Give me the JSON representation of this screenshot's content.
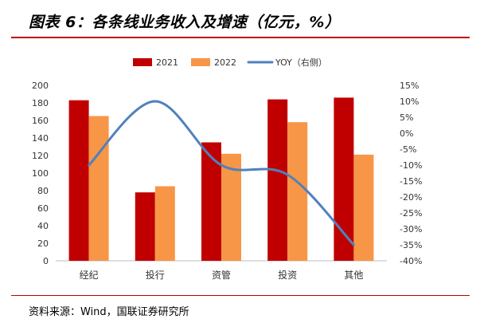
{
  "title": "图表 6：各条线业务收入及增速（亿元，%）",
  "source": "资料来源：Wind，国联证券研究所",
  "colors": {
    "s2021": "#c00000",
    "s2022": "#f79646",
    "yoy": "#4f81bd",
    "rule": "#c00000"
  },
  "chart_data": {
    "type": "bar",
    "categories": [
      "经纪",
      "投行",
      "资管",
      "投资",
      "其他"
    ],
    "series": [
      {
        "name": "2021",
        "type": "bar",
        "axis": "left",
        "values": [
          183,
          78,
          135,
          184,
          186
        ]
      },
      {
        "name": "2022",
        "type": "bar",
        "axis": "left",
        "values": [
          165,
          85,
          122,
          158,
          121
        ]
      },
      {
        "name": "YOY（右侧）",
        "type": "line",
        "axis": "right",
        "values": [
          -10,
          10,
          -10,
          -13,
          -35
        ]
      }
    ],
    "left_axis": {
      "min": 0,
      "max": 200,
      "step": 20,
      "ticks": [
        "0",
        "20",
        "40",
        "60",
        "80",
        "100",
        "120",
        "140",
        "160",
        "180",
        "200"
      ]
    },
    "right_axis": {
      "min": -40,
      "max": 15,
      "step": 5,
      "ticks": [
        "-40%",
        "-35%",
        "-30%",
        "-25%",
        "-20%",
        "-15%",
        "-10%",
        "-5%",
        "0%",
        "5%",
        "10%",
        "15%"
      ]
    },
    "legend_position": "top",
    "grid": false
  }
}
